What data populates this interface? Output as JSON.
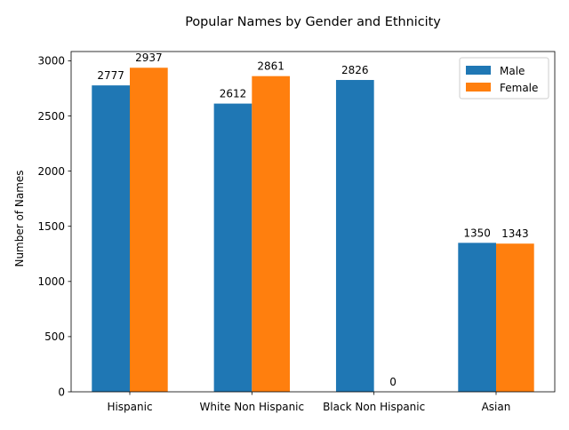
{
  "chart_data": {
    "type": "bar",
    "title": "Popular Names by Gender and Ethnicity",
    "xlabel": "",
    "ylabel": "Number of Names",
    "categories": [
      "Hispanic",
      "White Non Hispanic",
      "Black Non Hispanic",
      "Asian"
    ],
    "series": [
      {
        "name": "Male",
        "values": [
          2777,
          2612,
          2826,
          1350
        ],
        "color": "#1f77b4"
      },
      {
        "name": "Female",
        "values": [
          2937,
          2861,
          0,
          1343
        ],
        "color": "#ff7f0e"
      }
    ],
    "ylim": [
      0,
      3083.85
    ],
    "yticks": [
      0,
      500,
      1000,
      1500,
      2000,
      2500,
      3000
    ],
    "grid": false,
    "legend_position": "top-right",
    "show_value_labels": true
  }
}
